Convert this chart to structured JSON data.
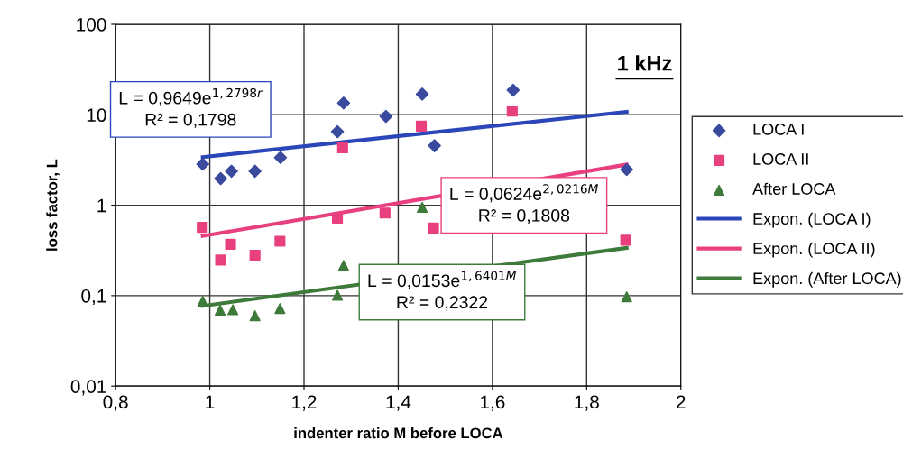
{
  "chart_data": {
    "type": "scatter",
    "xlabel": "indenter ratio M before LOCA",
    "ylabel": "loss factor, L",
    "log": "y",
    "grid": true,
    "legend": "right",
    "xlim": [
      0.8,
      2
    ],
    "xticks": [
      {
        "value": 0.8,
        "label": "0,8"
      },
      1,
      {
        "value": 1.2,
        "label": "1,2"
      },
      {
        "value": 1.4,
        "label": "1,4"
      },
      {
        "value": 1.6,
        "label": "1,6"
      },
      {
        "value": 1.8,
        "label": "1,8"
      },
      2
    ],
    "ylim": [
      0.01,
      100
    ],
    "yticks": [
      {
        "value": 0.01,
        "label": "0,01"
      },
      {
        "value": 0.1,
        "label": "0,1"
      },
      1,
      10,
      100
    ],
    "series": [
      {
        "name": "LOCA I",
        "marker": "diamond",
        "color": "#3a4a9e",
        "x": [
          0.985,
          1.023,
          1.046,
          1.096,
          1.15,
          1.271,
          1.284,
          1.374,
          1.451,
          1.477,
          1.644,
          1.885
        ],
        "values": [
          2.85,
          1.97,
          2.38,
          2.38,
          3.36,
          6.5,
          13.5,
          9.6,
          16.9,
          4.55,
          18.7,
          2.48
        ]
      },
      {
        "name": "LOCA II",
        "marker": "square",
        "color": "#e8407e",
        "x": [
          0.984,
          1.023,
          1.044,
          1.096,
          1.149,
          1.271,
          1.282,
          1.372,
          1.449,
          1.475,
          1.642,
          1.883
        ],
        "values": [
          0.57,
          0.248,
          0.37,
          0.28,
          0.4,
          0.72,
          4.3,
          0.82,
          7.5,
          0.56,
          11,
          0.41
        ]
      },
      {
        "name": "After LOCA",
        "marker": "triangle",
        "color": "#3e7a3a",
        "x": [
          0.985,
          1.022,
          1.049,
          1.096,
          1.149,
          1.271,
          1.284,
          1.451,
          1.885
        ],
        "values": [
          0.087,
          0.069,
          0.07,
          0.06,
          0.072,
          0.101,
          0.216,
          0.95,
          0.097
        ]
      },
      {
        "name": "Expon. (LOCA I)",
        "type": "line",
        "marker": "none",
        "color": "#2b46b8",
        "x": [
          0.985,
          1.885
        ],
        "values": [
          3.4,
          10.8
        ]
      },
      {
        "name": "Expon. (LOCA II)",
        "type": "line",
        "marker": "none",
        "color": "#e8407e",
        "x": [
          0.985,
          1.885
        ],
        "values": [
          0.457,
          2.82
        ]
      },
      {
        "name": "Expon. (After LOCA)",
        "type": "line",
        "marker": "none",
        "color": "#3e7a3a",
        "x": [
          0.985,
          1.885
        ],
        "values": [
          0.077,
          0.337
        ]
      }
    ],
    "annotations": [
      "L = 0,9649e$^{1,2798r}$\nR² = 0,1798",
      "L = 0,0624e$^{2,0216M}$\nR² = 0,1808",
      "L = 0,0153e$^{1,6401M}$\nR² = 0,2322",
      "1 kHz"
    ]
  }
}
